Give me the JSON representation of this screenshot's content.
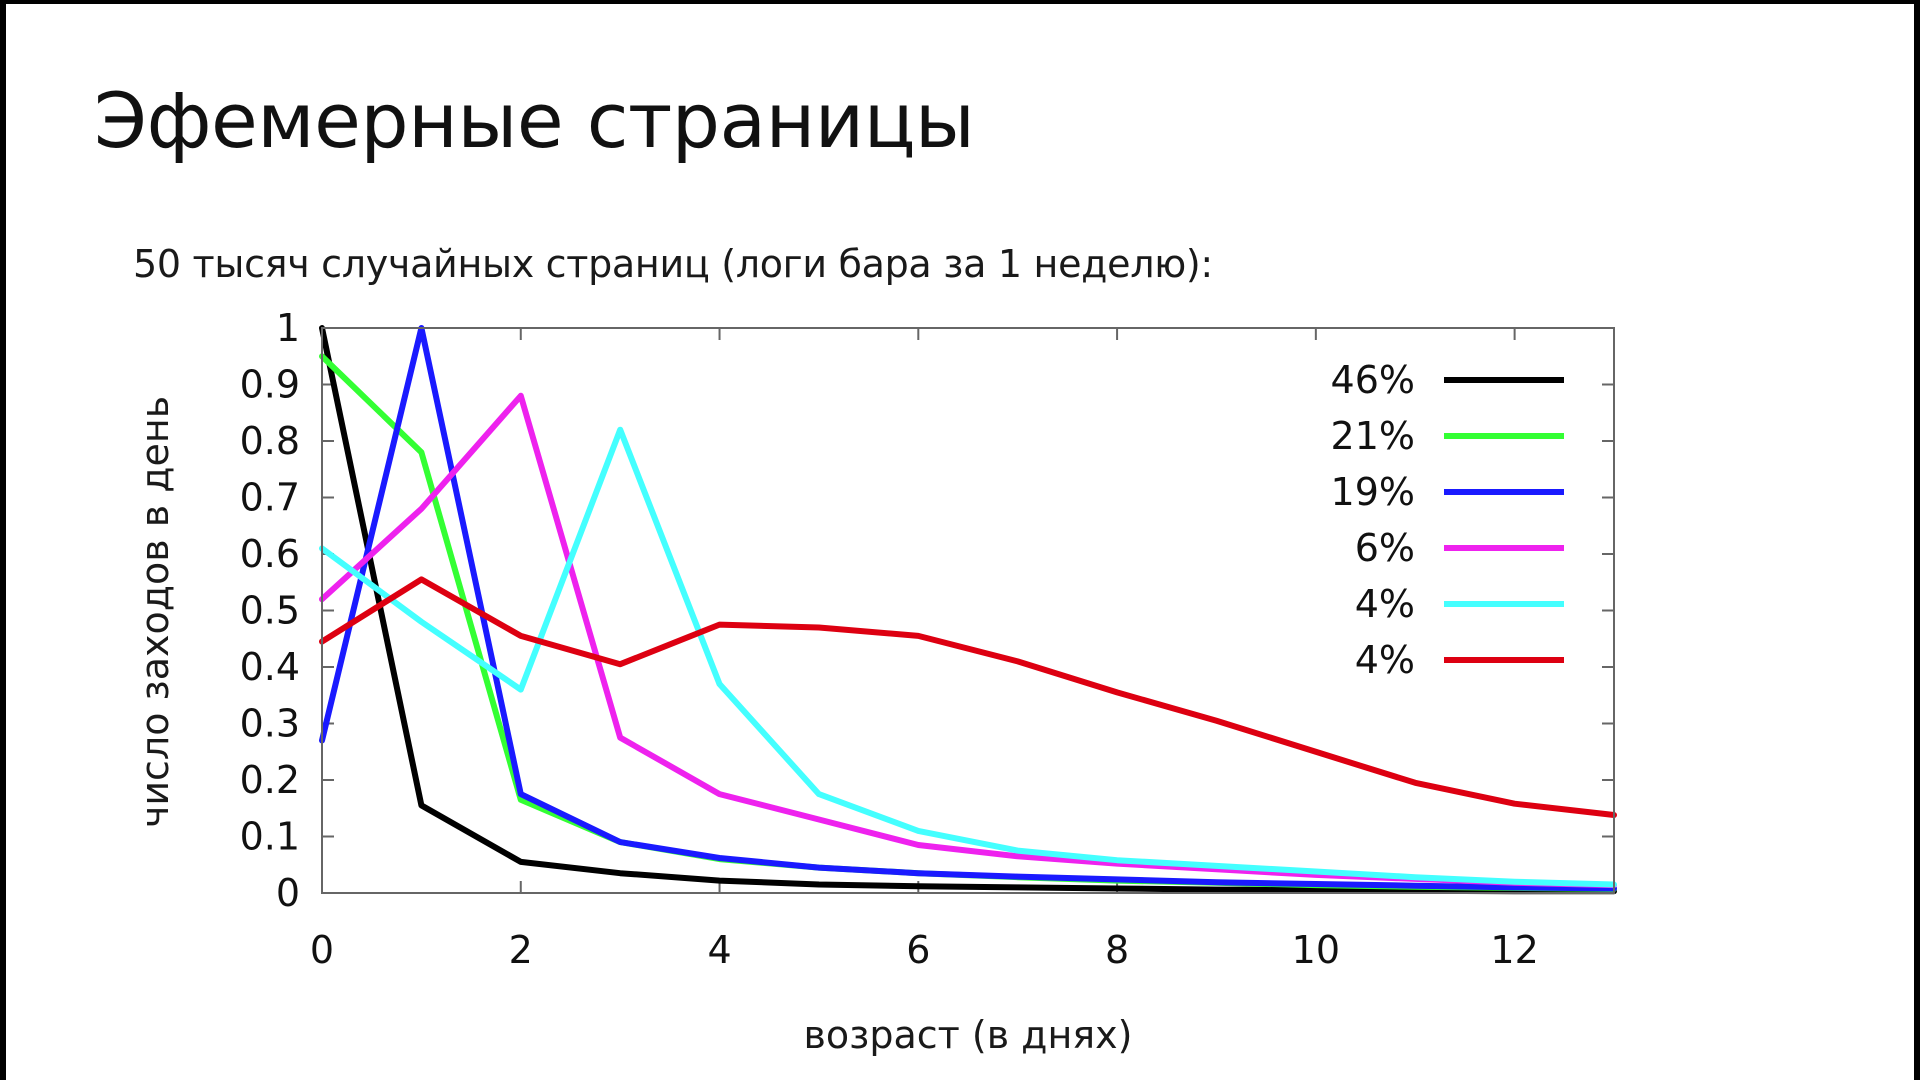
{
  "slide": {
    "title": "Эфемерные страницы",
    "subtitle": "50 тысяч случайных страниц (логи бара за 1 неделю):"
  },
  "chart_data": {
    "type": "line",
    "title": "",
    "xlabel": "возраст (в днях)",
    "ylabel": "число заходов в день",
    "xlim": [
      0,
      13
    ],
    "ylim": [
      0,
      1
    ],
    "xticks": [
      0,
      2,
      4,
      6,
      8,
      10,
      12
    ],
    "xtick_labels": [
      "0",
      "2",
      "4",
      "6",
      "8",
      "10",
      "12"
    ],
    "yticks": [
      0,
      0.1,
      0.2,
      0.3,
      0.4,
      0.5,
      0.6,
      0.7,
      0.8,
      0.9,
      1
    ],
    "ytick_labels": [
      "0",
      "0.1",
      "0.2",
      "0.3",
      "0.4",
      "0.5",
      "0.6",
      "0.7",
      "0.8",
      "0.9",
      "1"
    ],
    "legend_position": "top-right",
    "x": [
      0,
      1,
      2,
      3,
      4,
      5,
      6,
      7,
      8,
      9,
      10,
      11,
      12,
      13
    ],
    "series": [
      {
        "name": "46%",
        "color": "#000000",
        "values": [
          1.0,
          0.155,
          0.055,
          0.035,
          0.022,
          0.015,
          0.012,
          0.01,
          0.008,
          0.006,
          0.005,
          0.004,
          0.003,
          0.003
        ]
      },
      {
        "name": "21%",
        "color": "#33ff33",
        "values": [
          0.95,
          0.78,
          0.165,
          0.09,
          0.06,
          0.045,
          0.035,
          0.028,
          0.022,
          0.018,
          0.014,
          0.011,
          0.009,
          0.007
        ]
      },
      {
        "name": "19%",
        "color": "#1a1aff",
        "values": [
          0.27,
          1.0,
          0.175,
          0.09,
          0.062,
          0.045,
          0.035,
          0.029,
          0.024,
          0.019,
          0.016,
          0.013,
          0.01,
          0.008
        ]
      },
      {
        "name": "6%",
        "color": "#ee22ee",
        "values": [
          0.52,
          0.68,
          0.88,
          0.275,
          0.175,
          0.13,
          0.085,
          0.065,
          0.052,
          0.042,
          0.032,
          0.025,
          0.018,
          0.014
        ]
      },
      {
        "name": "4%",
        "color": "#44ffff",
        "values": [
          0.61,
          0.48,
          0.36,
          0.82,
          0.37,
          0.175,
          0.11,
          0.075,
          0.058,
          0.048,
          0.038,
          0.028,
          0.02,
          0.015
        ]
      },
      {
        "name": "4%",
        "color": "#dd0011",
        "values": [
          0.445,
          0.555,
          0.455,
          0.405,
          0.475,
          0.47,
          0.455,
          0.41,
          0.355,
          0.305,
          0.25,
          0.195,
          0.158,
          0.138
        ]
      }
    ]
  }
}
